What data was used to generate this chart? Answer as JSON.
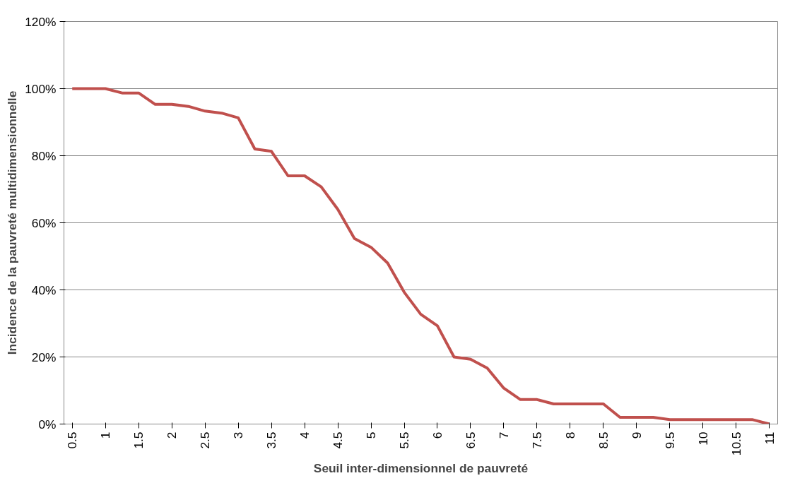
{
  "chart_data": {
    "type": "line",
    "xlabel": "Seuil inter-dimensionnel de pauvreté",
    "ylabel": "Incidence de la pauvreté multidimensionnelle",
    "categories": [
      "0.5",
      null,
      "1",
      null,
      "1.5",
      null,
      "2",
      null,
      "2.5",
      null,
      "3",
      null,
      "3.5",
      null,
      "4",
      null,
      "4.5",
      null,
      "5",
      null,
      "5.5",
      null,
      "6",
      null,
      "6.5",
      null,
      "7",
      null,
      "7.5",
      null,
      "8",
      null,
      "8.5",
      null,
      "9",
      null,
      "9.5",
      null,
      "10",
      null,
      "10.5",
      null,
      "11"
    ],
    "series": [
      {
        "color": "#c0504d",
        "values": [
          100,
          100,
          100,
          98.7,
          98.7,
          95.3,
          95.3,
          94.7,
          93.3,
          92.7,
          91.3,
          82,
          81.3,
          74,
          74,
          70.7,
          64,
          55.3,
          52.7,
          48,
          39.3,
          32.7,
          29.3,
          20,
          19.3,
          16.7,
          10.7,
          7.3,
          7.3,
          6,
          6,
          6,
          6,
          2,
          2,
          2,
          1.3,
          1.3,
          1.3,
          1.3,
          1.3,
          1.3,
          0
        ]
      }
    ],
    "ylim": [
      0,
      120
    ],
    "yticks": [
      {
        "value": 0,
        "label": "0%"
      },
      {
        "value": 20,
        "label": "20%"
      },
      {
        "value": 40,
        "label": "40%"
      },
      {
        "value": 60,
        "label": "60%"
      },
      {
        "value": 80,
        "label": "80%"
      },
      {
        "value": 100,
        "label": "100%"
      },
      {
        "value": 120,
        "label": "120%"
      }
    ],
    "grid": "y",
    "marker": "none",
    "line_style": "solid"
  }
}
